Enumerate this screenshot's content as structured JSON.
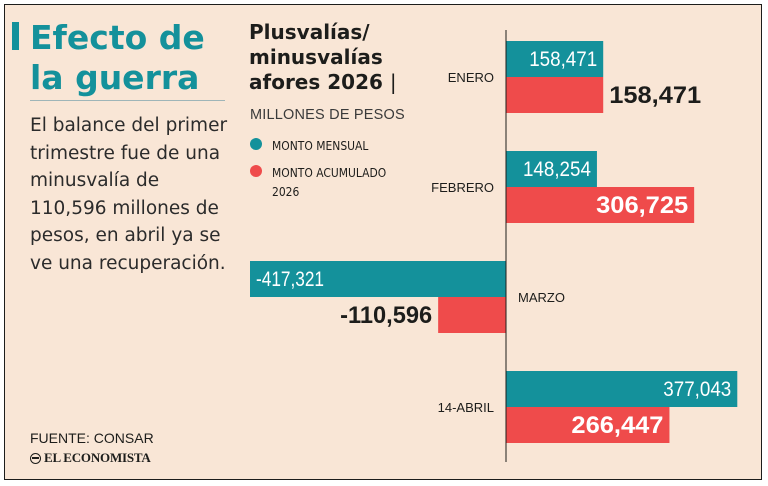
{
  "headline": "Efecto de la guerra",
  "lede": "El balance del primer trimestre fue de una minusvalía de 110,596 millones de pesos, en abril ya se ve una recuperación.",
  "source": "FUENTE: CONSAR",
  "logo_text": "EL ECONOMISTA",
  "colors": {
    "teal": "#14919b",
    "red": "#ef4b4b",
    "background": "#f9e6d6",
    "text": "#1d1d1b"
  },
  "chart_data": {
    "type": "bar",
    "orientation": "horizontal",
    "title": "Plusvalías/ minusvalías afores 2026",
    "title_separator": "|",
    "subtitle": "MILLONES DE PESOS",
    "categories": [
      "ENERO",
      "FEBRERO",
      "MARZO",
      "14-ABRIL"
    ],
    "series": [
      {
        "name": "MONTO MENSUAL",
        "color": "#14919b",
        "values": [
          158471,
          148254,
          -417321,
          377043
        ],
        "labels": [
          "158,471",
          "148,254",
          "-417,321",
          "377,043"
        ]
      },
      {
        "name": "MONTO ACUMULADO 2026",
        "color": "#ef4b4b",
        "values": [
          158471,
          306725,
          -110596,
          266447
        ],
        "labels": [
          "158,471",
          "306,725",
          "-110,596",
          "266,447"
        ]
      }
    ],
    "legend_position": "top-left",
    "grid": false
  }
}
